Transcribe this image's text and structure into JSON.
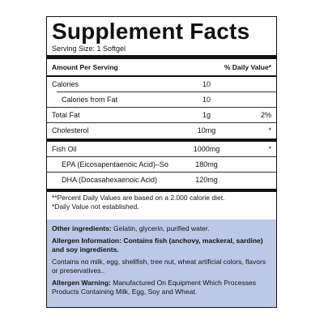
{
  "title": "Supplement Facts",
  "serving_size": "Serving Size: 1 Softgel",
  "header": {
    "amount_per_serving": "Amount Per Serving",
    "daily_value": "% Daily Value*"
  },
  "rows": [
    {
      "name": "Calories",
      "amount": "10",
      "dv": ""
    },
    {
      "name": "Calories from Fat",
      "amount": "10",
      "dv": ""
    },
    {
      "name": "Total Fat",
      "amount": "1g",
      "dv": "2%"
    },
    {
      "name": "Cholesterol",
      "amount": "10mg",
      "dv": "*"
    },
    {
      "name": "Fish Oil",
      "amount": "1000mg",
      "dv": "*"
    },
    {
      "name": "EPA (Eicosapentaenoic Acid)–So",
      "amount": "180mg",
      "dv": ""
    },
    {
      "name": "DHA (Docasahexaenoic Acid)",
      "amount": "120mg",
      "dv": ""
    }
  ],
  "footnote": {
    "line1": "**Percent Daily Values are based on a 2.000 calorie diet.",
    "line2": "*Daily Value not established."
  },
  "other_ingredients": {
    "label": "Other ingredients:",
    "text": " Gelatin, glycerin, purified water."
  },
  "allergen_info": {
    "label": "Allergen Information: ",
    "text": "Contains fish (anchovy, mackeral, sardine) and soy ingredients."
  },
  "contains_no": "Contains no milk, egg, shellfish, tree nut, wheat artificial colors, flavors or preservatives..",
  "allergen_warning": {
    "label": "Allergen Warning:",
    "text": " Manufactured On Equipment Which Processes Products Containing Milk, Egg, Soy and Wheat."
  }
}
